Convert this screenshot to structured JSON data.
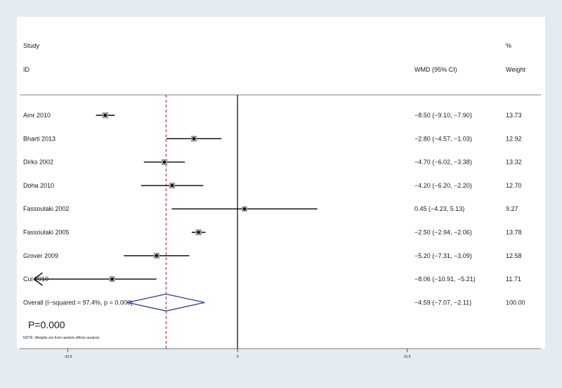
{
  "headers": {
    "study_line1": "Study",
    "study_line2": "ID",
    "effect": "WMD (95% CI)",
    "weight_line1": "%",
    "weight_line2": "Weight"
  },
  "p_value_text": "P=0.000",
  "note": "NOTE: Weights are from random effects analysis",
  "chart_data": {
    "type": "forest",
    "xlim": [
      -14,
      19.5
    ],
    "ticks": [
      {
        "value": -10.9,
        "label": "-10.9"
      },
      {
        "value": 0,
        "label": "0"
      },
      {
        "value": 10.9,
        "label": "10.9"
      }
    ],
    "null_line": 0,
    "pooled_line": -4.59,
    "studies": [
      {
        "name": "Amr 2010",
        "est": -8.5,
        "lo": -9.1,
        "hi": -7.9,
        "ci_text": "−8.50 (−9.10, −7.90)",
        "weight": 13.73,
        "weight_text": "13.73"
      },
      {
        "name": "Bharti 2013",
        "est": -2.8,
        "lo": -4.57,
        "hi": -1.03,
        "ci_text": "−2.80 (−4.57, −1.03)",
        "weight": 12.92,
        "weight_text": "12.92"
      },
      {
        "name": "Dirks 2002",
        "est": -4.7,
        "lo": -6.02,
        "hi": -3.38,
        "ci_text": "−4.70 (−6.02, −3.38)",
        "weight": 13.32,
        "weight_text": "13.32"
      },
      {
        "name": "Doha 2010",
        "est": -4.2,
        "lo": -6.2,
        "hi": -2.2,
        "ci_text": "−4.20 (−6.20, −2.20)",
        "weight": 12.7,
        "weight_text": "12.70"
      },
      {
        "name": "Fassoulaki 2002",
        "est": 0.45,
        "lo": -4.23,
        "hi": 5.13,
        "ci_text": "0.45 (−4.23, 5.13)",
        "weight": 9.27,
        "weight_text": "9.27"
      },
      {
        "name": "Fassoulaki 2005",
        "est": -2.5,
        "lo": -2.94,
        "hi": -2.06,
        "ci_text": "−2.50 (−2.94, −2.06)",
        "weight": 13.78,
        "weight_text": "13.78"
      },
      {
        "name": "Grover 2009",
        "est": -5.2,
        "lo": -7.31,
        "hi": -3.09,
        "ci_text": "−5.20 (−7.31, −3.09)",
        "weight": 12.58,
        "weight_text": "12.58"
      },
      {
        "name": "Cui 2010",
        "est": -8.06,
        "lo": -10.91,
        "hi": -5.21,
        "ci_text": "−8.06 (−10.91, −5.21)",
        "weight": 11.71,
        "weight_text": "11.71",
        "lower_arrow": true
      }
    ],
    "overall": {
      "name": "Overall  (I−squared = 97.4%, p = 0.000)",
      "est": -4.59,
      "lo": -7.07,
      "hi": -2.11,
      "ci_text": "−4.59 (−7.07, −2.11)",
      "weight_text": "100.00"
    },
    "colors": {
      "ci_line": "#000000",
      "marker_box": "#9a9a9a",
      "pooled_line": "#c0392b",
      "diamond": "#2c3e8c",
      "background": "#e4ecf2",
      "panel": "#ffffff"
    }
  }
}
